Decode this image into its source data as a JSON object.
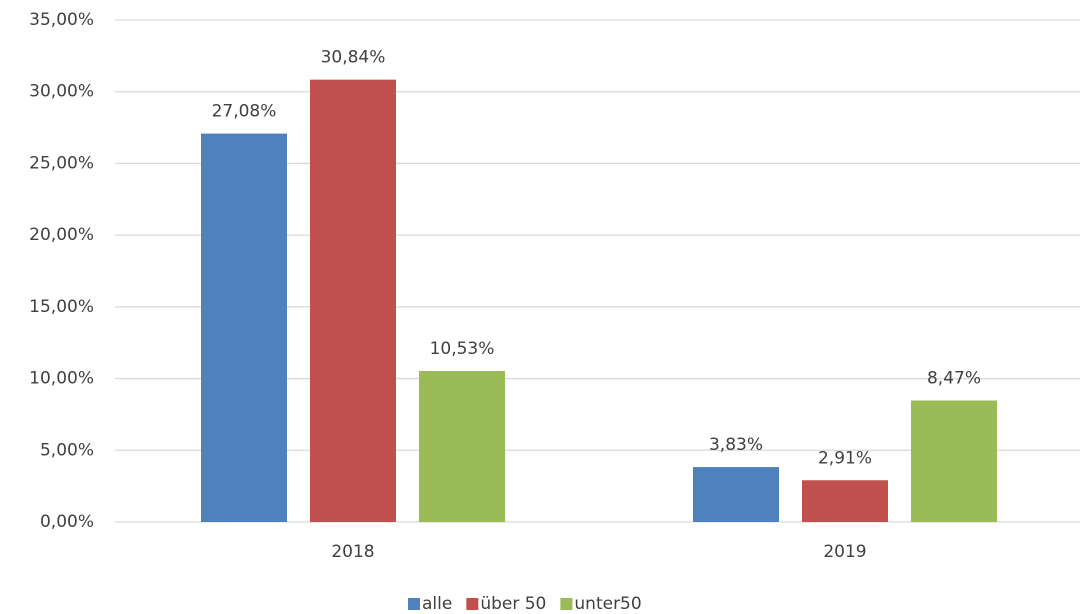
{
  "chart_data": {
    "type": "bar",
    "categories": [
      "2018",
      "2019"
    ],
    "series": [
      {
        "name": "alle",
        "color": "#4f81bd",
        "values": [
          27.08,
          3.83
        ],
        "value_labels": [
          "27,08%",
          "3,83%"
        ]
      },
      {
        "name": "über 50",
        "color": "#c0504d",
        "values": [
          30.84,
          2.91
        ],
        "value_labels": [
          "30,84%",
          "2,91%"
        ]
      },
      {
        "name": "unter50",
        "color": "#9bbb59",
        "values": [
          10.53,
          8.47
        ],
        "value_labels": [
          "10,53%",
          "8,47%"
        ]
      }
    ],
    "ylim": [
      0,
      35
    ],
    "yticks": [
      {
        "value": 0,
        "label": "0,00%"
      },
      {
        "value": 5,
        "label": "5,00%"
      },
      {
        "value": 10,
        "label": "10,00%"
      },
      {
        "value": 15,
        "label": "15,00%"
      },
      {
        "value": 20,
        "label": "20,00%"
      },
      {
        "value": 25,
        "label": "25,00%"
      },
      {
        "value": 30,
        "label": "30,00%"
      },
      {
        "value": 35,
        "label": "35,00%"
      }
    ],
    "grid": true,
    "legend": "bottom"
  }
}
